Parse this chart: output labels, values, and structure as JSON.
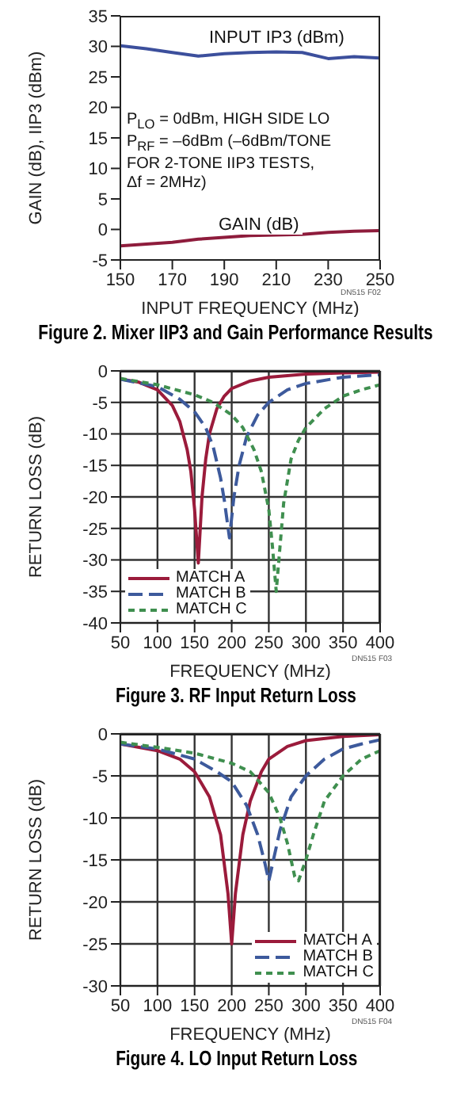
{
  "chart_data": [
    {
      "type": "line",
      "title": "Figure 2. Mixer IIP3 and Gain Performance Results",
      "xlabel": "INPUT FREQUENCY (MHz)",
      "ylabel": "GAIN (dB), IIP3 (dBm)",
      "x": [
        150,
        160,
        170,
        180,
        190,
        200,
        210,
        220,
        230,
        240,
        250
      ],
      "xlim": [
        150,
        250
      ],
      "xticks": [
        150,
        170,
        190,
        210,
        230,
        250
      ],
      "ylim": [
        -5,
        35
      ],
      "yticks": [
        -5,
        0,
        5,
        10,
        15,
        20,
        25,
        30,
        35
      ],
      "grid": false,
      "marker": "none",
      "series": [
        {
          "name": "INPUT IP3 (dBm)",
          "color": "#3c4f9c",
          "line_style": "solid",
          "values": [
            30.1,
            29.6,
            29.0,
            28.4,
            28.8,
            29.0,
            29.1,
            29.0,
            28.0,
            28.3,
            28.1
          ]
        },
        {
          "name": "GAIN (dB)",
          "color": "#8e1c3c",
          "line_style": "solid",
          "values": [
            -2.7,
            -2.4,
            -2.1,
            -1.6,
            -1.3,
            -1.0,
            -0.9,
            -0.8,
            -0.5,
            -0.3,
            -0.2
          ]
        }
      ],
      "annotations": [
        "P$_{LO}$ = 0dBm, HIGH SIDE LO",
        "P$_{RF}$ = –6dBm (–6dBm/TONE",
        "FOR 2-TONE IIP3 TESTS,",
        "Δf = 2MHz)",
        "DN515 F02"
      ]
    },
    {
      "type": "line",
      "title": "Figure 3. RF Input Return Loss",
      "xlabel": "FREQUENCY (MHz)",
      "ylabel": "RETURN LOSS (dB)",
      "xlim": [
        50,
        400
      ],
      "xticks": [
        50,
        100,
        150,
        200,
        250,
        300,
        350,
        400
      ],
      "ylim": [
        -40,
        0
      ],
      "yticks": [
        -40,
        -35,
        -30,
        -25,
        -20,
        -15,
        -10,
        -5,
        0
      ],
      "grid": true,
      "legend": "bottom left",
      "marker": "none",
      "series": [
        {
          "name": "MATCH A",
          "color": "#9b1b3b",
          "line_style": "solid",
          "x": [
            50,
            75,
            100,
            120,
            130,
            140,
            145,
            150,
            155,
            160,
            165,
            170,
            180,
            190,
            200,
            225,
            250,
            300,
            350,
            400
          ],
          "values": [
            -1.3,
            -1.8,
            -3,
            -5.5,
            -8,
            -12.5,
            -16,
            -22,
            -30.5,
            -20,
            -14,
            -10,
            -6,
            -4,
            -2.8,
            -1.6,
            -1,
            -0.5,
            -0.3,
            -0.2
          ]
        },
        {
          "name": "MATCH B",
          "color": "#3d5a9c",
          "line_style": "dashed",
          "x": [
            50,
            100,
            130,
            150,
            165,
            175,
            185,
            190,
            197,
            203,
            210,
            220,
            235,
            250,
            275,
            300,
            350,
            400
          ],
          "values": [
            -1.3,
            -2.5,
            -4.5,
            -6.5,
            -9,
            -12,
            -17,
            -20.5,
            -26.5,
            -20,
            -15,
            -10.5,
            -7,
            -5,
            -3,
            -2,
            -1,
            -0.6
          ]
        },
        {
          "name": "MATCH C",
          "color": "#3f8f4f",
          "line_style": "dotted",
          "x": [
            50,
            100,
            150,
            175,
            200,
            215,
            230,
            240,
            250,
            255,
            260,
            265,
            270,
            280,
            290,
            300,
            325,
            350,
            375,
            400
          ],
          "values": [
            -1.2,
            -2.2,
            -3.8,
            -5,
            -7,
            -9,
            -12.5,
            -16,
            -22,
            -28,
            -35,
            -28,
            -21,
            -14,
            -11,
            -9,
            -6,
            -4,
            -3,
            -2.2
          ]
        }
      ],
      "annotations": [
        "DN515 F03"
      ]
    },
    {
      "type": "line",
      "title": "Figure 4. LO Input Return Loss",
      "xlabel": "FREQUENCY (MHz)",
      "ylabel": "RETURN LOSS (dB)",
      "xlim": [
        50,
        400
      ],
      "xticks": [
        50,
        100,
        150,
        200,
        250,
        300,
        350,
        400
      ],
      "ylim": [
        -30,
        0
      ],
      "yticks": [
        -30,
        -25,
        -20,
        -15,
        -10,
        -5,
        0
      ],
      "grid": true,
      "legend": "bottom right",
      "marker": "none",
      "series": [
        {
          "name": "MATCH A",
          "color": "#9b1b3b",
          "line_style": "solid",
          "x": [
            50,
            100,
            130,
            150,
            170,
            185,
            195,
            200,
            205,
            215,
            225,
            240,
            250,
            275,
            300,
            350,
            400
          ],
          "values": [
            -1.2,
            -2.0,
            -3,
            -4.5,
            -7.5,
            -12,
            -19,
            -25,
            -19,
            -12,
            -8,
            -4.5,
            -3,
            -1.5,
            -0.8,
            -0.3,
            -0.1
          ]
        },
        {
          "name": "MATCH B",
          "color": "#3d5a9c",
          "line_style": "dashed",
          "x": [
            50,
            100,
            150,
            180,
            200,
            220,
            235,
            245,
            250,
            255,
            265,
            280,
            300,
            325,
            350,
            375,
            400
          ],
          "values": [
            -1.2,
            -1.8,
            -3,
            -4.5,
            -5.7,
            -8.5,
            -12,
            -15.5,
            -17.5,
            -15.5,
            -11.5,
            -7.5,
            -5,
            -3,
            -1.8,
            -1.2,
            -0.7
          ]
        },
        {
          "name": "MATCH C",
          "color": "#3f8f4f",
          "line_style": "dotted",
          "x": [
            50,
            100,
            150,
            200,
            225,
            250,
            265,
            275,
            285,
            290,
            300,
            310,
            325,
            350,
            375,
            400
          ],
          "values": [
            -1,
            -1.6,
            -2.3,
            -3.5,
            -4.5,
            -7,
            -10,
            -13,
            -17,
            -17.5,
            -15,
            -12,
            -8,
            -5,
            -3,
            -2
          ]
        }
      ],
      "annotations": [
        "DN515 F04"
      ]
    }
  ]
}
